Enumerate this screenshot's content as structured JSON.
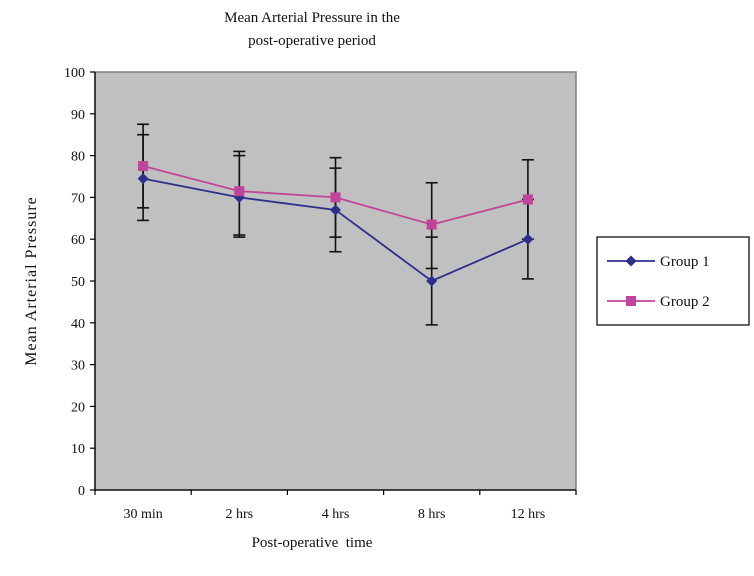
{
  "chart_data": {
    "type": "line",
    "title_lines": [
      "Mean Arterial Pressure in the",
      "post-operative period"
    ],
    "xlabel": "Post-operative  time",
    "ylabel": "Mean Arterial Pressure",
    "categories": [
      "30 min",
      "2 hrs",
      "4 hrs",
      "8 hrs",
      "12 hrs"
    ],
    "ylim": [
      0,
      100
    ],
    "yticks": [
      0,
      10,
      20,
      30,
      40,
      50,
      60,
      70,
      80,
      90,
      100
    ],
    "grid": false,
    "plot_background": "#c0c0c0",
    "legend_position": "right",
    "series": [
      {
        "name": "Group 1",
        "color": "#2e2f8c",
        "marker": "diamond",
        "values": [
          74.5,
          70,
          67,
          50,
          60
        ],
        "error_low": [
          64.5,
          60.5,
          57,
          39.5,
          50.5
        ],
        "error_high": [
          85,
          80,
          77,
          60.5,
          69.5
        ]
      },
      {
        "name": "Group 2",
        "color": "#c0449a",
        "marker": "square",
        "values": [
          77.5,
          71.5,
          70,
          63.5,
          69.5
        ],
        "error_low": [
          67.5,
          61,
          60.5,
          53,
          60
        ],
        "error_high": [
          87.5,
          81,
          79.5,
          73.5,
          79
        ]
      }
    ]
  }
}
